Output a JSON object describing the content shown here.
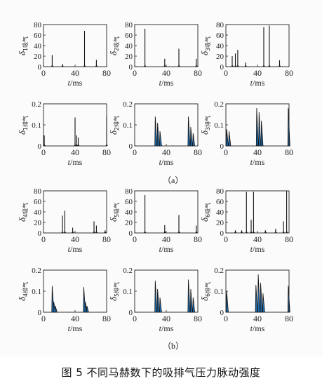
{
  "figure": {
    "caption": "图 5   不同马赫数下的吸排气压力脉动强度",
    "sublabels": [
      "（a）",
      "（b）"
    ]
  },
  "colors": {
    "spike": "#111111",
    "fill": "#1f6fb5",
    "axis": "#222222"
  },
  "chart_data": [
    {
      "id": "p1",
      "type": "area",
      "row": 0,
      "col": 0,
      "ylabel_main": "δ",
      "ylabel_sub": "1吸气",
      "xlabel_italic": "t",
      "xlabel_unit": "/ms",
      "xlim": [
        0,
        80
      ],
      "ylim": [
        0,
        80
      ],
      "xticks": [
        0,
        40,
        80
      ],
      "yticks": [
        0,
        20,
        40,
        60,
        80
      ],
      "fill": false,
      "spikes": [
        [
          11,
          22
        ],
        [
          24,
          5
        ],
        [
          52,
          68
        ],
        [
          67,
          13
        ]
      ]
    },
    {
      "id": "p2",
      "type": "area",
      "row": 0,
      "col": 1,
      "ylabel_main": "δ",
      "ylabel_sub": "2吸气",
      "xlabel_italic": "t",
      "xlabel_unit": "/ms",
      "xlim": [
        0,
        80
      ],
      "ylim": [
        0,
        80
      ],
      "xticks": [
        0,
        40,
        80
      ],
      "yticks": [
        0,
        20,
        40,
        60,
        80
      ],
      "fill": false,
      "spikes": [
        [
          13,
          72
        ],
        [
          38,
          15
        ],
        [
          56,
          34
        ],
        [
          78,
          15
        ]
      ]
    },
    {
      "id": "p3",
      "type": "area",
      "row": 0,
      "col": 2,
      "ylabel_main": "δ",
      "ylabel_sub": "3吸气",
      "xlabel_italic": "t",
      "xlabel_unit": "/ms",
      "xlim": [
        0,
        80
      ],
      "ylim": [
        0,
        80
      ],
      "xticks": [
        0,
        40,
        80
      ],
      "yticks": [
        0,
        20,
        40,
        60,
        80
      ],
      "fill": false,
      "spikes": [
        [
          8,
          20
        ],
        [
          12,
          25
        ],
        [
          15,
          32
        ],
        [
          25,
          8
        ],
        [
          48,
          75
        ],
        [
          55,
          78
        ],
        [
          68,
          12
        ]
      ]
    },
    {
      "id": "p4",
      "type": "area",
      "row": 1,
      "col": 0,
      "ylabel_main": "δ",
      "ylabel_sub": "1排气",
      "xlabel_italic": "t",
      "xlabel_unit": "/ms",
      "xlim": [
        0,
        80
      ],
      "ylim": [
        0,
        0.2
      ],
      "xticks": [
        0,
        40,
        80
      ],
      "yticks": [
        0,
        0.1,
        0.2
      ],
      "fill": false,
      "spikes": [
        [
          1,
          0.05
        ],
        [
          40,
          0.135
        ],
        [
          42,
          0.05
        ],
        [
          44,
          0.04
        ],
        [
          80,
          0.14
        ]
      ]
    },
    {
      "id": "p5",
      "type": "area",
      "row": 1,
      "col": 1,
      "ylabel_main": "δ",
      "ylabel_sub": "2排气",
      "xlabel_italic": "t",
      "xlabel_unit": "/ms",
      "xlim": [
        0,
        80
      ],
      "ylim": [
        0,
        0.2
      ],
      "xticks": [
        0,
        40,
        80
      ],
      "yticks": [
        0,
        0.1,
        0.2
      ],
      "fill": true,
      "spikes": [
        [
          26,
          0.14
        ],
        [
          29,
          0.11
        ],
        [
          32,
          0.07
        ],
        [
          68,
          0.14
        ],
        [
          71,
          0.09
        ],
        [
          74,
          0.06
        ]
      ]
    },
    {
      "id": "p6",
      "type": "area",
      "row": 1,
      "col": 2,
      "ylabel_main": "δ",
      "ylabel_sub": "3排气",
      "xlabel_italic": "t",
      "xlabel_unit": "/ms",
      "xlim": [
        0,
        80
      ],
      "ylim": [
        0,
        0.2
      ],
      "xticks": [
        0,
        40,
        80
      ],
      "yticks": [
        0,
        0.1,
        0.2
      ],
      "fill": true,
      "spikes": [
        [
          1,
          0.08
        ],
        [
          4,
          0.07
        ],
        [
          39,
          0.18
        ],
        [
          42,
          0.16
        ],
        [
          45,
          0.12
        ],
        [
          79,
          0.18
        ]
      ]
    },
    {
      "id": "p7",
      "type": "area",
      "row": 2,
      "col": 0,
      "ylabel_main": "δ",
      "ylabel_sub": "4吸气",
      "xlabel_italic": "t",
      "xlabel_unit": "/ms",
      "xlim": [
        0,
        80
      ],
      "ylim": [
        0,
        80
      ],
      "xticks": [
        0,
        40,
        80
      ],
      "yticks": [
        0,
        20,
        40,
        60,
        80
      ],
      "fill": false,
      "spikes": [
        [
          24,
          33
        ],
        [
          27,
          42
        ],
        [
          37,
          10
        ],
        [
          64,
          22
        ],
        [
          67,
          14
        ],
        [
          78,
          5
        ]
      ]
    },
    {
      "id": "p8",
      "type": "area",
      "row": 2,
      "col": 1,
      "ylabel_main": "δ",
      "ylabel_sub": "5吸气",
      "xlabel_italic": "t",
      "xlabel_unit": "/ms",
      "xlim": [
        0,
        80
      ],
      "ylim": [
        0,
        80
      ],
      "xticks": [
        0,
        40,
        80
      ],
      "yticks": [
        0,
        20,
        40,
        60,
        80
      ],
      "fill": false,
      "spikes": [
        [
          13,
          72
        ],
        [
          38,
          15
        ],
        [
          56,
          34
        ],
        [
          78,
          14
        ]
      ]
    },
    {
      "id": "p9",
      "type": "area",
      "row": 2,
      "col": 2,
      "ylabel_main": "δ",
      "ylabel_sub": "6吸气",
      "xlabel_italic": "t",
      "xlabel_unit": "/ms",
      "xlim": [
        0,
        80
      ],
      "ylim": [
        0,
        80
      ],
      "xticks": [
        0,
        40,
        80
      ],
      "yticks": [
        0,
        20,
        40,
        60,
        80
      ],
      "fill": false,
      "spikes": [
        [
          12,
          5
        ],
        [
          20,
          5
        ],
        [
          26,
          78
        ],
        [
          32,
          25
        ],
        [
          35,
          78
        ],
        [
          50,
          5
        ],
        [
          63,
          8
        ],
        [
          73,
          22
        ],
        [
          77,
          80
        ]
      ]
    },
    {
      "id": "p10",
      "type": "area",
      "row": 3,
      "col": 0,
      "ylabel_main": "δ",
      "ylabel_sub": "4排气",
      "xlabel_italic": "t",
      "xlabel_unit": "/ms",
      "xlim": [
        0,
        80
      ],
      "ylim": [
        0,
        0.2
      ],
      "xticks": [
        0,
        40,
        80
      ],
      "yticks": [
        0,
        0.1,
        0.2
      ],
      "fill": true,
      "spikes": [
        [
          11,
          0.125
        ],
        [
          13,
          0.05
        ],
        [
          15,
          0.03
        ],
        [
          51,
          0.12
        ],
        [
          53,
          0.05
        ],
        [
          55,
          0.03
        ]
      ]
    },
    {
      "id": "p11",
      "type": "area",
      "row": 3,
      "col": 1,
      "ylabel_main": "δ",
      "ylabel_sub": "5排气",
      "xlabel_italic": "t",
      "xlabel_unit": "/ms",
      "xlim": [
        0,
        80
      ],
      "ylim": [
        0,
        0.2
      ],
      "xticks": [
        0,
        40,
        80
      ],
      "yticks": [
        0,
        0.1,
        0.2
      ],
      "fill": true,
      "spikes": [
        [
          26,
          0.15
        ],
        [
          29,
          0.11
        ],
        [
          32,
          0.07
        ],
        [
          68,
          0.155
        ],
        [
          71,
          0.11
        ],
        [
          74,
          0.07
        ]
      ]
    },
    {
      "id": "p12",
      "type": "area",
      "row": 3,
      "col": 2,
      "ylabel_main": "δ",
      "ylabel_sub": "6排气",
      "xlabel_italic": "t",
      "xlabel_unit": "/ms",
      "xlim": [
        0,
        80
      ],
      "ylim": [
        0,
        0.2
      ],
      "xticks": [
        0,
        40,
        80
      ],
      "yticks": [
        0,
        0.1,
        0.2
      ],
      "fill": true,
      "spikes": [
        [
          1,
          0.1
        ],
        [
          38,
          0.13
        ],
        [
          41,
          0.18
        ],
        [
          44,
          0.14
        ],
        [
          47,
          0.09
        ],
        [
          79,
          0.125
        ]
      ]
    }
  ]
}
